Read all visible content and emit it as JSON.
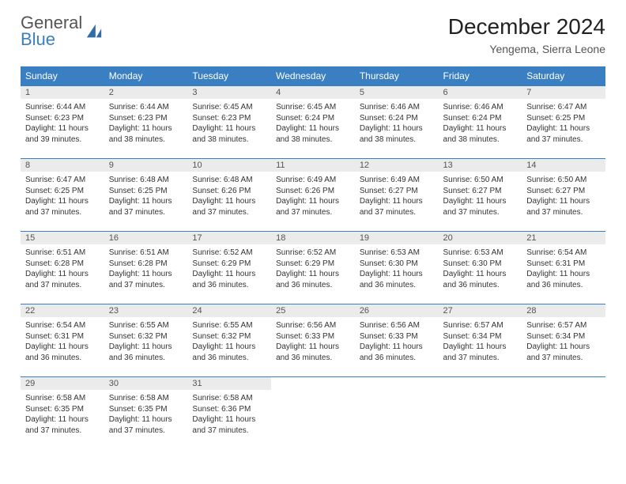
{
  "logo": {
    "general": "General",
    "blue": "Blue"
  },
  "header": {
    "title": "December 2024",
    "subtitle": "Yengema, Sierra Leone"
  },
  "colors": {
    "headerBar": "#3a7fc2",
    "dayNumBg": "#ebebeb",
    "borderRow": "#3a7fc2"
  },
  "weekdays": [
    "Sunday",
    "Monday",
    "Tuesday",
    "Wednesday",
    "Thursday",
    "Friday",
    "Saturday"
  ],
  "days": [
    {
      "n": 1,
      "sunrise": "6:44 AM",
      "sunset": "6:23 PM",
      "daylight": "11 hours and 39 minutes."
    },
    {
      "n": 2,
      "sunrise": "6:44 AM",
      "sunset": "6:23 PM",
      "daylight": "11 hours and 38 minutes."
    },
    {
      "n": 3,
      "sunrise": "6:45 AM",
      "sunset": "6:23 PM",
      "daylight": "11 hours and 38 minutes."
    },
    {
      "n": 4,
      "sunrise": "6:45 AM",
      "sunset": "6:24 PM",
      "daylight": "11 hours and 38 minutes."
    },
    {
      "n": 5,
      "sunrise": "6:46 AM",
      "sunset": "6:24 PM",
      "daylight": "11 hours and 38 minutes."
    },
    {
      "n": 6,
      "sunrise": "6:46 AM",
      "sunset": "6:24 PM",
      "daylight": "11 hours and 38 minutes."
    },
    {
      "n": 7,
      "sunrise": "6:47 AM",
      "sunset": "6:25 PM",
      "daylight": "11 hours and 37 minutes."
    },
    {
      "n": 8,
      "sunrise": "6:47 AM",
      "sunset": "6:25 PM",
      "daylight": "11 hours and 37 minutes."
    },
    {
      "n": 9,
      "sunrise": "6:48 AM",
      "sunset": "6:25 PM",
      "daylight": "11 hours and 37 minutes."
    },
    {
      "n": 10,
      "sunrise": "6:48 AM",
      "sunset": "6:26 PM",
      "daylight": "11 hours and 37 minutes."
    },
    {
      "n": 11,
      "sunrise": "6:49 AM",
      "sunset": "6:26 PM",
      "daylight": "11 hours and 37 minutes."
    },
    {
      "n": 12,
      "sunrise": "6:49 AM",
      "sunset": "6:27 PM",
      "daylight": "11 hours and 37 minutes."
    },
    {
      "n": 13,
      "sunrise": "6:50 AM",
      "sunset": "6:27 PM",
      "daylight": "11 hours and 37 minutes."
    },
    {
      "n": 14,
      "sunrise": "6:50 AM",
      "sunset": "6:27 PM",
      "daylight": "11 hours and 37 minutes."
    },
    {
      "n": 15,
      "sunrise": "6:51 AM",
      "sunset": "6:28 PM",
      "daylight": "11 hours and 37 minutes."
    },
    {
      "n": 16,
      "sunrise": "6:51 AM",
      "sunset": "6:28 PM",
      "daylight": "11 hours and 37 minutes."
    },
    {
      "n": 17,
      "sunrise": "6:52 AM",
      "sunset": "6:29 PM",
      "daylight": "11 hours and 36 minutes."
    },
    {
      "n": 18,
      "sunrise": "6:52 AM",
      "sunset": "6:29 PM",
      "daylight": "11 hours and 36 minutes."
    },
    {
      "n": 19,
      "sunrise": "6:53 AM",
      "sunset": "6:30 PM",
      "daylight": "11 hours and 36 minutes."
    },
    {
      "n": 20,
      "sunrise": "6:53 AM",
      "sunset": "6:30 PM",
      "daylight": "11 hours and 36 minutes."
    },
    {
      "n": 21,
      "sunrise": "6:54 AM",
      "sunset": "6:31 PM",
      "daylight": "11 hours and 36 minutes."
    },
    {
      "n": 22,
      "sunrise": "6:54 AM",
      "sunset": "6:31 PM",
      "daylight": "11 hours and 36 minutes."
    },
    {
      "n": 23,
      "sunrise": "6:55 AM",
      "sunset": "6:32 PM",
      "daylight": "11 hours and 36 minutes."
    },
    {
      "n": 24,
      "sunrise": "6:55 AM",
      "sunset": "6:32 PM",
      "daylight": "11 hours and 36 minutes."
    },
    {
      "n": 25,
      "sunrise": "6:56 AM",
      "sunset": "6:33 PM",
      "daylight": "11 hours and 36 minutes."
    },
    {
      "n": 26,
      "sunrise": "6:56 AM",
      "sunset": "6:33 PM",
      "daylight": "11 hours and 36 minutes."
    },
    {
      "n": 27,
      "sunrise": "6:57 AM",
      "sunset": "6:34 PM",
      "daylight": "11 hours and 37 minutes."
    },
    {
      "n": 28,
      "sunrise": "6:57 AM",
      "sunset": "6:34 PM",
      "daylight": "11 hours and 37 minutes."
    },
    {
      "n": 29,
      "sunrise": "6:58 AM",
      "sunset": "6:35 PM",
      "daylight": "11 hours and 37 minutes."
    },
    {
      "n": 30,
      "sunrise": "6:58 AM",
      "sunset": "6:35 PM",
      "daylight": "11 hours and 37 minutes."
    },
    {
      "n": 31,
      "sunrise": "6:58 AM",
      "sunset": "6:36 PM",
      "daylight": "11 hours and 37 minutes."
    }
  ],
  "labels": {
    "sunrise": "Sunrise:",
    "sunset": "Sunset:",
    "daylight": "Daylight:"
  }
}
